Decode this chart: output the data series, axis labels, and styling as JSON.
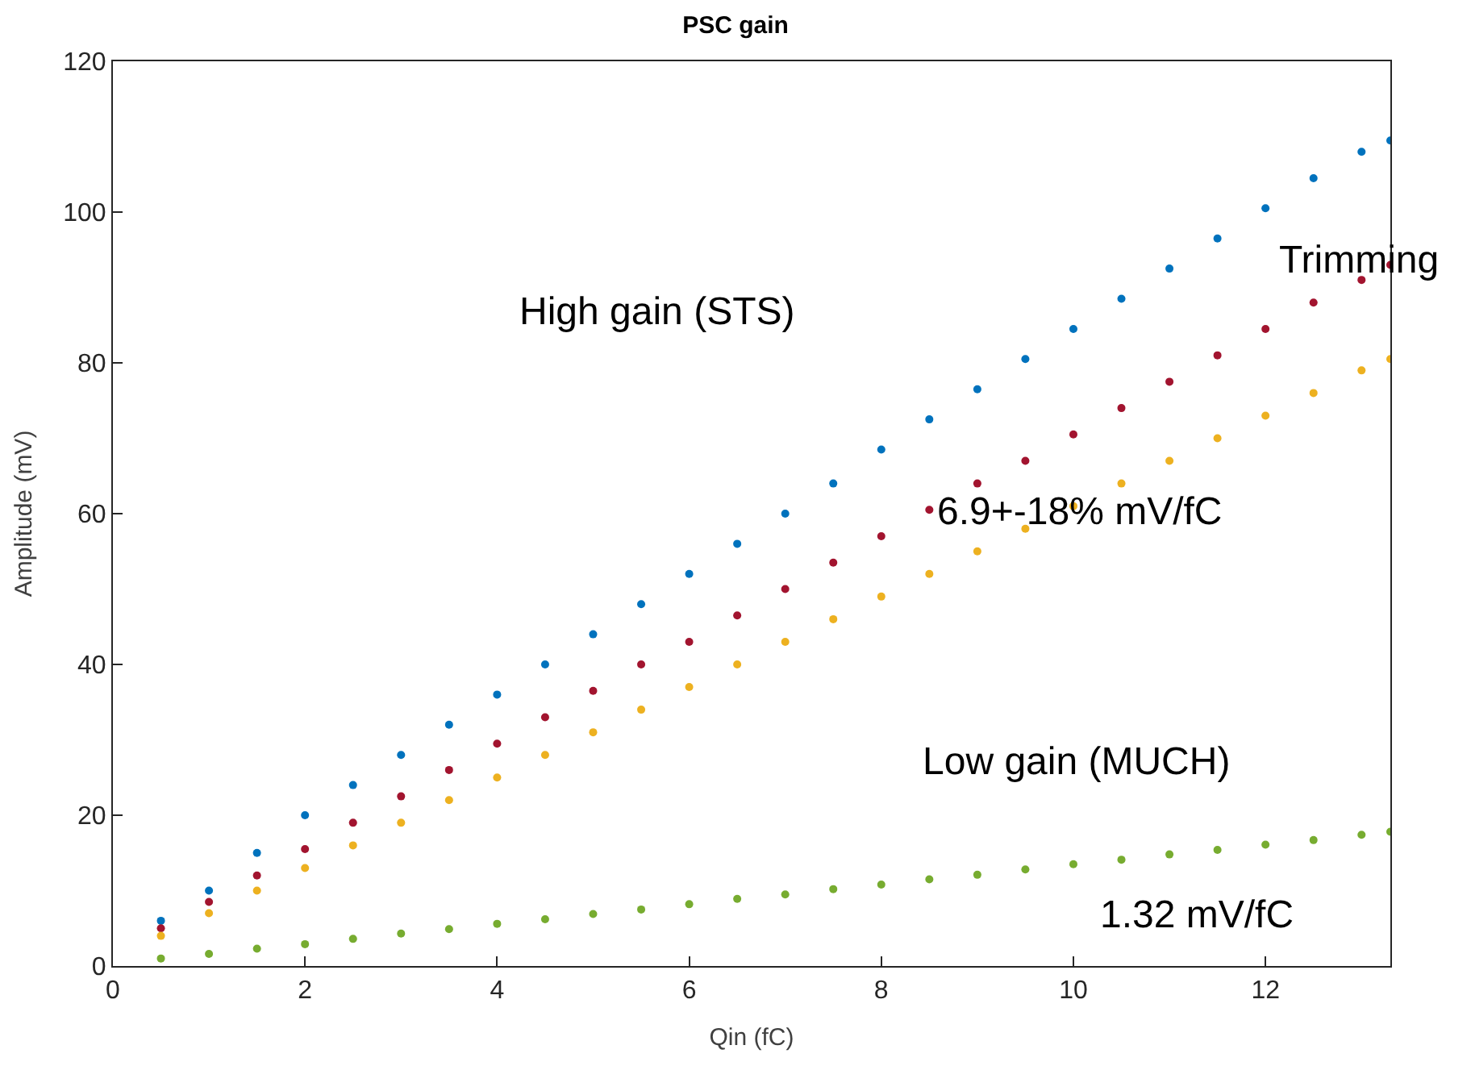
{
  "chart_data": {
    "type": "scatter",
    "title": "PSC gain",
    "xlabel": "Qin (fC)",
    "ylabel": "Amplitude (mV)",
    "x": [
      0.5,
      1,
      1.5,
      2,
      2.5,
      3,
      3.5,
      4,
      4.5,
      5,
      5.5,
      6,
      6.5,
      7,
      7.5,
      8,
      8.5,
      9,
      9.5,
      10,
      10.5,
      11,
      11.5,
      12,
      12.5,
      13,
      13.3
    ],
    "series": [
      {
        "color": "#0072bd",
        "values": [
          6,
          10,
          15,
          20,
          24,
          28,
          32,
          36,
          40,
          44,
          48,
          52,
          56,
          60,
          64,
          68.5,
          72.5,
          76.5,
          80.5,
          84.5,
          88.5,
          92.5,
          96.5,
          100.5,
          104.5,
          108,
          109.5
        ]
      },
      {
        "color": "#a2142f",
        "values": [
          5,
          8.5,
          12,
          15.5,
          19,
          22.5,
          26,
          29.5,
          33,
          36.5,
          40,
          43,
          46.5,
          50,
          53.5,
          57,
          60.5,
          64,
          67,
          70.5,
          74,
          77.5,
          81,
          84.5,
          88,
          91,
          93
        ]
      },
      {
        "color": "#edb120",
        "values": [
          4,
          7,
          10,
          13,
          16,
          19,
          22,
          25,
          28,
          31,
          34,
          37,
          40,
          43,
          46,
          49,
          52,
          55,
          58,
          61,
          64,
          67,
          70,
          73,
          76,
          79,
          80.5
        ]
      },
      {
        "color": "#77ac30",
        "values": [
          1,
          1.6,
          2.3,
          2.9,
          3.6,
          4.3,
          4.9,
          5.6,
          6.2,
          6.9,
          7.5,
          8.2,
          8.9,
          9.5,
          10.2,
          10.8,
          11.5,
          12.1,
          12.8,
          13.5,
          14.1,
          14.8,
          15.4,
          16.1,
          16.7,
          17.4,
          17.8
        ]
      }
    ],
    "xlim": [
      0,
      13.3
    ],
    "xticks": [
      0,
      2,
      4,
      6,
      8,
      10,
      12
    ],
    "ylim": [
      0,
      120
    ],
    "yticks": [
      0,
      20,
      40,
      60,
      80,
      100,
      120
    ],
    "marker": "circle",
    "annotations": [
      "High gain (STS)",
      "Trimming",
      "6.9+-18% mV/fC",
      "Low gain (MUCH)",
      "1.32 mV/fC"
    ]
  }
}
